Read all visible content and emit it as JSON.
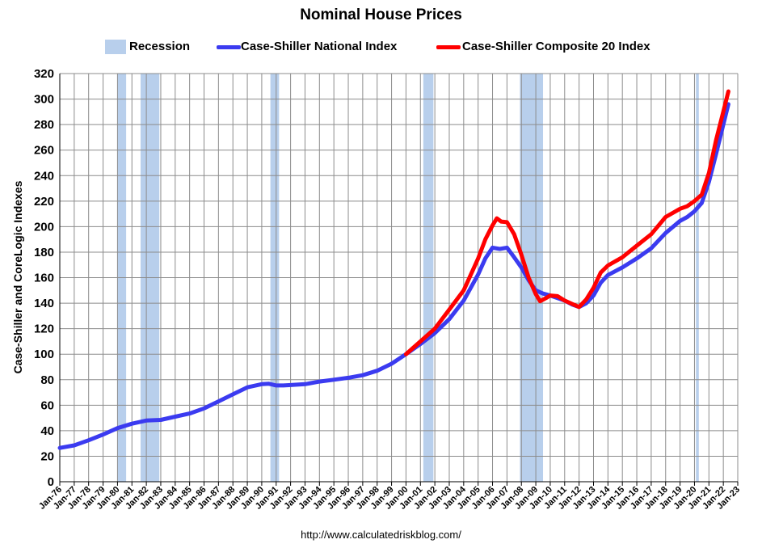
{
  "chart_data": {
    "type": "line",
    "title": "Nominal House Prices",
    "ylabel": "Case-Shiller and CoreLogic Indexes",
    "xlabel": "",
    "source": "http://www.calculatedriskblog.com/",
    "ylim": [
      0,
      320
    ],
    "xlim": [
      1976.0,
      2023.0
    ],
    "y_ticks": [
      0,
      20,
      40,
      60,
      80,
      100,
      120,
      140,
      160,
      180,
      200,
      220,
      240,
      260,
      280,
      300,
      320
    ],
    "x_ticks": [
      "Jan-76",
      "Jan-77",
      "Jan-78",
      "Jan-79",
      "Jan-80",
      "Jan-81",
      "Jan-82",
      "Jan-83",
      "Jan-84",
      "Jan-85",
      "Jan-86",
      "Jan-87",
      "Jan-88",
      "Jan-89",
      "Jan-90",
      "Jan-91",
      "Jan-92",
      "Jan-93",
      "Jan-94",
      "Jan-95",
      "Jan-96",
      "Jan-97",
      "Jan-98",
      "Jan-99",
      "Jan-00",
      "Jan-01",
      "Jan-02",
      "Jan-03",
      "Jan-04",
      "Jan-05",
      "Jan-06",
      "Jan-07",
      "Jan-08",
      "Jan-09",
      "Jan-10",
      "Jan-11",
      "Jan-12",
      "Jan-13",
      "Jan-14",
      "Jan-15",
      "Jan-16",
      "Jan-17",
      "Jan-18",
      "Jan-19",
      "Jan-20",
      "Jan-21",
      "Jan-22",
      "Jan-23"
    ],
    "grid": true,
    "legend_position": "top",
    "recessions": [
      {
        "start": 1980.0,
        "end": 1980.6
      },
      {
        "start": 1981.6,
        "end": 1982.9
      },
      {
        "start": 1990.6,
        "end": 1991.2
      },
      {
        "start": 2001.2,
        "end": 2001.9
      },
      {
        "start": 2007.9,
        "end": 2009.5
      },
      {
        "start": 2020.1,
        "end": 2020.3
      }
    ],
    "recession_label": "Recession",
    "recession_color": "#b8cfec",
    "series": [
      {
        "name": "Case-Shiller National Index",
        "color": "#3b3bf0",
        "points": [
          [
            1976.0,
            26.5
          ],
          [
            1977.0,
            28.5
          ],
          [
            1978.0,
            32.5
          ],
          [
            1979.0,
            37.0
          ],
          [
            1980.0,
            42.0
          ],
          [
            1981.0,
            45.5
          ],
          [
            1982.0,
            48.0
          ],
          [
            1983.0,
            48.5
          ],
          [
            1984.0,
            51.0
          ],
          [
            1985.0,
            53.5
          ],
          [
            1986.0,
            57.5
          ],
          [
            1987.0,
            63.0
          ],
          [
            1988.0,
            68.5
          ],
          [
            1989.0,
            74.0
          ],
          [
            1990.0,
            76.5
          ],
          [
            1990.5,
            76.8
          ],
          [
            1991.0,
            75.5
          ],
          [
            1991.5,
            75.5
          ],
          [
            1992.0,
            75.8
          ],
          [
            1993.0,
            76.5
          ],
          [
            1994.0,
            78.5
          ],
          [
            1995.0,
            80.0
          ],
          [
            1996.0,
            81.5
          ],
          [
            1997.0,
            83.5
          ],
          [
            1998.0,
            87.0
          ],
          [
            1999.0,
            92.5
          ],
          [
            2000.0,
            100.0
          ],
          [
            2001.0,
            108.0
          ],
          [
            2002.0,
            116.5
          ],
          [
            2003.0,
            127.5
          ],
          [
            2004.0,
            142.0
          ],
          [
            2005.0,
            162.5
          ],
          [
            2005.5,
            175.0
          ],
          [
            2006.0,
            183.5
          ],
          [
            2006.5,
            182.5
          ],
          [
            2007.0,
            183.5
          ],
          [
            2007.5,
            176.0
          ],
          [
            2008.0,
            168.0
          ],
          [
            2008.5,
            158.0
          ],
          [
            2009.0,
            150.0
          ],
          [
            2009.5,
            147.5
          ],
          [
            2010.0,
            146.0
          ],
          [
            2010.5,
            144.0
          ],
          [
            2011.0,
            142.0
          ],
          [
            2011.5,
            139.0
          ],
          [
            2012.0,
            137.0
          ],
          [
            2012.5,
            140.0
          ],
          [
            2013.0,
            146.0
          ],
          [
            2013.5,
            156.0
          ],
          [
            2014.0,
            162.0
          ],
          [
            2015.0,
            168.0
          ],
          [
            2016.0,
            175.0
          ],
          [
            2017.0,
            183.0
          ],
          [
            2018.0,
            195.0
          ],
          [
            2019.0,
            204.5
          ],
          [
            2019.5,
            207.5
          ],
          [
            2020.0,
            212.0
          ],
          [
            2020.5,
            218.5
          ],
          [
            2021.0,
            235.0
          ],
          [
            2021.5,
            257.0
          ],
          [
            2022.0,
            280.0
          ],
          [
            2022.35,
            296.0
          ]
        ]
      },
      {
        "name": "Case-Shiller Composite 20 Index",
        "color": "#ff0000",
        "points": [
          [
            2000.0,
            100.0
          ],
          [
            2001.0,
            110.0
          ],
          [
            2002.0,
            120.0
          ],
          [
            2003.0,
            135.0
          ],
          [
            2004.0,
            150.0
          ],
          [
            2005.0,
            175.0
          ],
          [
            2005.5,
            190.0
          ],
          [
            2006.0,
            201.0
          ],
          [
            2006.3,
            206.5
          ],
          [
            2006.6,
            204.0
          ],
          [
            2007.0,
            203.5
          ],
          [
            2007.5,
            194.0
          ],
          [
            2008.0,
            178.0
          ],
          [
            2008.5,
            160.0
          ],
          [
            2009.0,
            147.0
          ],
          [
            2009.3,
            141.5
          ],
          [
            2009.7,
            144.0
          ],
          [
            2010.0,
            146.0
          ],
          [
            2010.5,
            145.5
          ],
          [
            2011.0,
            142.0
          ],
          [
            2011.5,
            139.5
          ],
          [
            2012.0,
            137.0
          ],
          [
            2012.5,
            143.0
          ],
          [
            2013.0,
            152.0
          ],
          [
            2013.5,
            164.0
          ],
          [
            2014.0,
            169.5
          ],
          [
            2015.0,
            176.0
          ],
          [
            2016.0,
            185.0
          ],
          [
            2017.0,
            194.0
          ],
          [
            2018.0,
            207.5
          ],
          [
            2019.0,
            214.0
          ],
          [
            2019.5,
            216.0
          ],
          [
            2020.0,
            220.0
          ],
          [
            2020.5,
            225.0
          ],
          [
            2021.0,
            242.0
          ],
          [
            2021.5,
            268.0
          ],
          [
            2022.0,
            290.0
          ],
          [
            2022.35,
            306.0
          ]
        ]
      }
    ]
  }
}
